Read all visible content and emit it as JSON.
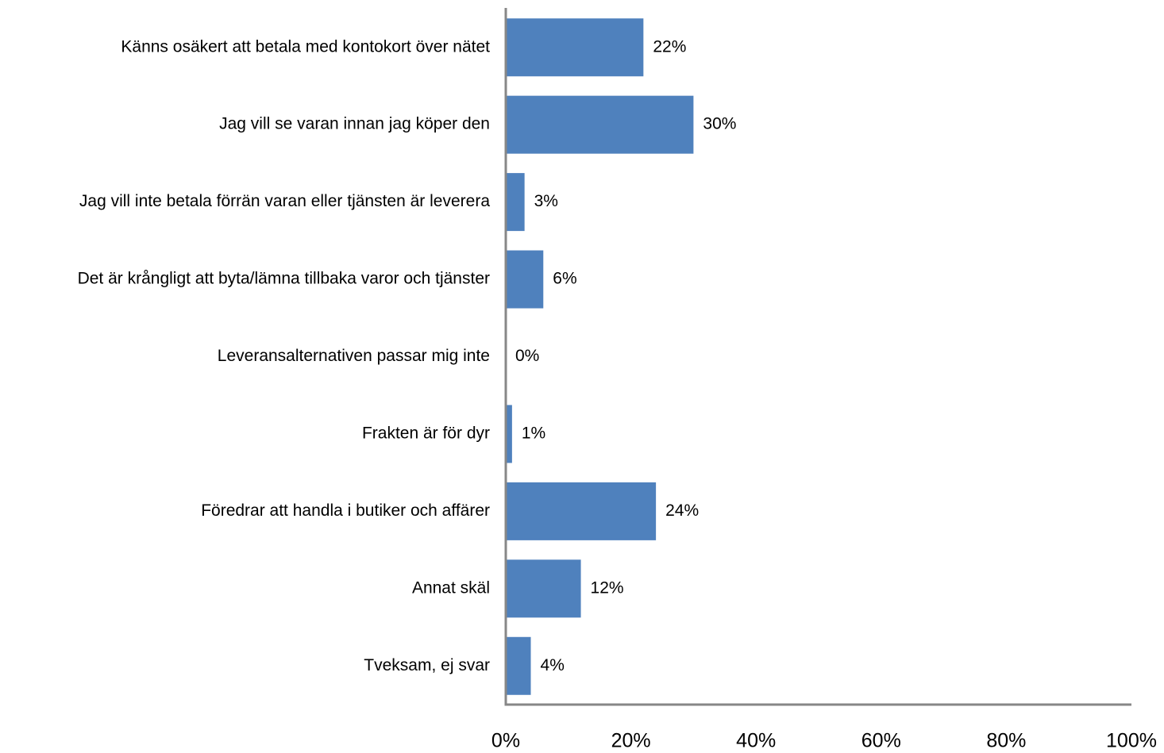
{
  "chart_data": {
    "type": "bar",
    "orientation": "horizontal",
    "categories": [
      "Känns osäkert att betala med kontokort över nätet",
      "Jag vill se varan innan jag köper den",
      "Jag vill inte betala förrän varan eller tjänsten är leverera",
      "Det är krångligt att byta/lämna tillbaka varor och tjänster",
      "Leveransalternativen passar mig inte",
      "Frakten är för dyr",
      "Föredrar att handla i butiker och affärer",
      "Annat skäl",
      "Tveksam, ej svar"
    ],
    "values": [
      22,
      30,
      3,
      6,
      0,
      1,
      24,
      12,
      4
    ],
    "value_labels": [
      "22%",
      "30%",
      "3%",
      "6%",
      "0%",
      "1%",
      "24%",
      "12%",
      "4%"
    ],
    "color": "#4f81bd",
    "xlim": [
      0,
      100
    ],
    "xticks": [
      {
        "value": 0,
        "label": "0%"
      },
      {
        "value": 20,
        "label": "20%"
      },
      {
        "value": 40,
        "label": "40%"
      },
      {
        "value": 60,
        "label": "60%"
      },
      {
        "value": 80,
        "label": "80%"
      },
      {
        "value": 100,
        "label": "100%"
      }
    ],
    "grid": false
  }
}
